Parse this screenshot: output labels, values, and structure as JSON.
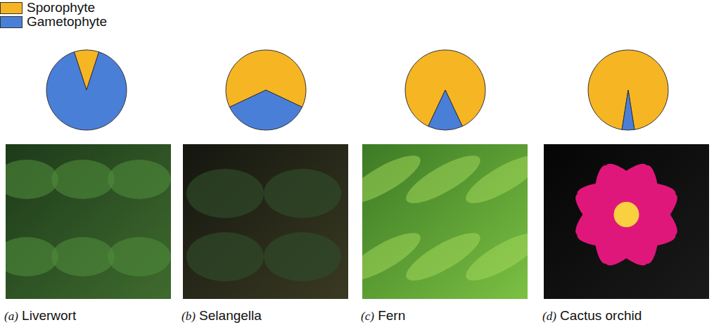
{
  "chart_data": [
    {
      "type": "pie",
      "title": "(a) Liverwort",
      "categories": [
        "Sporophyte",
        "Gametophyte"
      ],
      "values": [
        10,
        90
      ],
      "colors": [
        "#f6b523",
        "#4a7fd8"
      ],
      "legend": "upper left"
    },
    {
      "type": "pie",
      "title": "(b) Selangella",
      "categories": [
        "Sporophyte",
        "Gametophyte"
      ],
      "values": [
        64,
        36
      ],
      "colors": [
        "#f6b523",
        "#4a7fd8"
      ]
    },
    {
      "type": "pie",
      "title": "(c) Fern",
      "categories": [
        "Sporophyte",
        "Gametophyte"
      ],
      "values": [
        86,
        14
      ],
      "colors": [
        "#f6b523",
        "#4a7fd8"
      ]
    },
    {
      "type": "pie",
      "title": "(d) Cactus orchid",
      "categories": [
        "Sporophyte",
        "Gametophyte"
      ],
      "values": [
        95,
        5
      ],
      "colors": [
        "#f6b523",
        "#4a7fd8"
      ]
    }
  ]
}
